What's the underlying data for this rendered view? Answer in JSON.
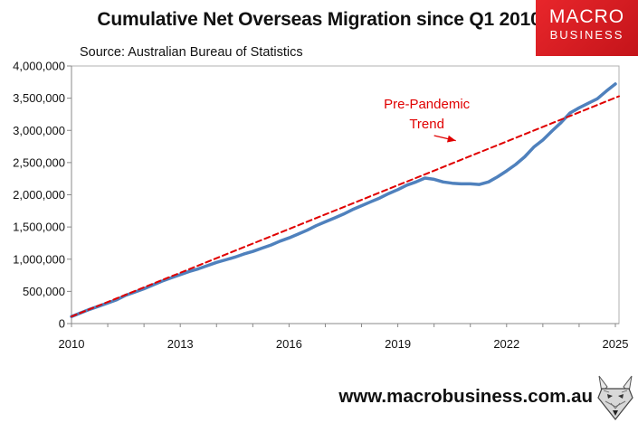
{
  "header": {
    "title": "Cumulative Net Overseas Migration since Q1 2010",
    "source": "Source: Australian Bureau of Statistics"
  },
  "brand": {
    "line1": "MACRO",
    "line2": "BUSINESS",
    "color": "#d71920"
  },
  "footer": {
    "url": "www.macrobusiness.com.au"
  },
  "chart_data": {
    "type": "line",
    "title": "Cumulative Net Overseas Migration since Q1 2010",
    "xlabel": "",
    "ylabel": "",
    "xlim": [
      2010,
      2025.1
    ],
    "ylim": [
      0,
      4000000
    ],
    "x_ticks": [
      2010,
      2013,
      2016,
      2019,
      2022,
      2025
    ],
    "y_ticks": [
      0,
      500000,
      1000000,
      1500000,
      2000000,
      2500000,
      3000000,
      3500000,
      4000000
    ],
    "y_tick_labels": [
      "0",
      "500,000",
      "1,000,000",
      "1,500,000",
      "2,000,000",
      "2,500,000",
      "3,000,000",
      "3,500,000",
      "4,000,000"
    ],
    "series": [
      {
        "name": "Cumulative Net Overseas Migration",
        "color": "#4f81bd",
        "style": "solid",
        "x": [
          2010.0,
          2010.25,
          2010.5,
          2010.75,
          2011.0,
          2011.25,
          2011.5,
          2011.75,
          2012.0,
          2012.25,
          2012.5,
          2012.75,
          2013.0,
          2013.25,
          2013.5,
          2013.75,
          2014.0,
          2014.25,
          2014.5,
          2014.75,
          2015.0,
          2015.25,
          2015.5,
          2015.75,
          2016.0,
          2016.25,
          2016.5,
          2016.75,
          2017.0,
          2017.25,
          2017.5,
          2017.75,
          2018.0,
          2018.25,
          2018.5,
          2018.75,
          2019.0,
          2019.25,
          2019.5,
          2019.75,
          2020.0,
          2020.25,
          2020.5,
          2020.75,
          2021.0,
          2021.25,
          2021.5,
          2021.75,
          2022.0,
          2022.25,
          2022.5,
          2022.75,
          2023.0,
          2023.25,
          2023.5,
          2023.75,
          2024.0,
          2024.25,
          2024.5,
          2024.75,
          2025.0
        ],
        "values": [
          110000,
          165000,
          220000,
          270000,
          320000,
          370000,
          440000,
          490000,
          540000,
          600000,
          660000,
          710000,
          760000,
          810000,
          850000,
          900000,
          950000,
          990000,
          1030000,
          1080000,
          1120000,
          1170000,
          1220000,
          1280000,
          1330000,
          1390000,
          1450000,
          1520000,
          1580000,
          1640000,
          1700000,
          1770000,
          1830000,
          1890000,
          1950000,
          2020000,
          2080000,
          2150000,
          2200000,
          2260000,
          2240000,
          2200000,
          2180000,
          2170000,
          2170000,
          2160000,
          2200000,
          2280000,
          2370000,
          2470000,
          2590000,
          2740000,
          2850000,
          2990000,
          3120000,
          3270000,
          3350000,
          3420000,
          3490000,
          3610000,
          3720000
        ]
      },
      {
        "name": "Pre-Pandemic Trend",
        "color": "#e00000",
        "style": "dashed",
        "x": [
          2010.0,
          2025.1
        ],
        "values": [
          110000,
          3530000
        ]
      }
    ],
    "annotations": [
      {
        "line1": "Pre-Pandemic",
        "line2": "Trend",
        "points_to_x": 2020.6,
        "points_to_y": 2840000,
        "color": "#e00000"
      }
    ]
  }
}
